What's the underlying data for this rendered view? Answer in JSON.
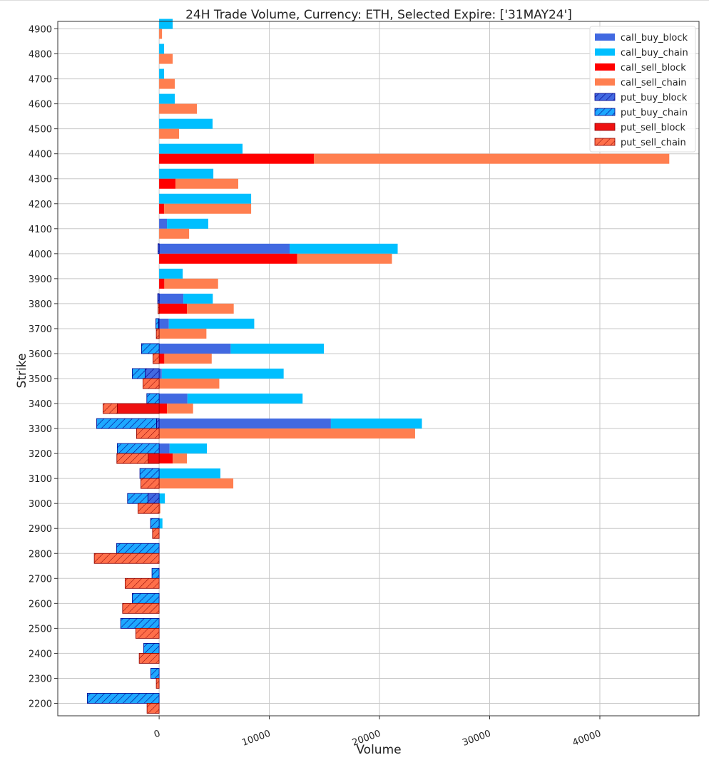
{
  "chart_data": {
    "type": "bar",
    "orientation": "horizontal",
    "stacked": true,
    "title": "24H Trade Volume, Currency: ETH, Selected Expire: ['31MAY24']",
    "xlabel": "Volume",
    "ylabel": "Strike",
    "xlim": [
      -9200,
      49000
    ],
    "ylim": [
      2150,
      4930
    ],
    "xticks": [
      0,
      10000,
      20000,
      30000,
      40000
    ],
    "grid": true,
    "legend_position": "top-right",
    "categories": [
      4900,
      4800,
      4700,
      4600,
      4500,
      4400,
      4300,
      4200,
      4100,
      4000,
      3900,
      3800,
      3700,
      3600,
      3500,
      3400,
      3300,
      3200,
      3100,
      3000,
      2900,
      2800,
      2700,
      2600,
      2500,
      2400,
      2300,
      2200
    ],
    "series": [
      {
        "name": "call_buy_block",
        "group": "buy",
        "color": "#4169E1",
        "hatch": false,
        "values": [
          0,
          0,
          0,
          0,
          0,
          0,
          0,
          0,
          710,
          11840,
          0,
          2200,
          880,
          6490,
          240,
          2570,
          15590,
          950,
          0,
          0,
          0,
          0,
          0,
          0,
          0,
          0,
          0,
          0
        ]
      },
      {
        "name": "call_buy_chain",
        "group": "buy",
        "color": "#00BFFF",
        "hatch": false,
        "values": [
          1230,
          450,
          450,
          1420,
          4850,
          7570,
          4920,
          8350,
          3750,
          9810,
          2140,
          2670,
          7750,
          8460,
          11060,
          10450,
          8260,
          3380,
          5560,
          520,
          300,
          0,
          0,
          0,
          0,
          0,
          0,
          0
        ]
      },
      {
        "name": "call_sell_block",
        "group": "sell",
        "color": "#FF0000",
        "hatch": false,
        "values": [
          0,
          0,
          0,
          0,
          0,
          14040,
          1490,
          450,
          0,
          12530,
          470,
          2520,
          0,
          470,
          0,
          710,
          0,
          1230,
          0,
          0,
          0,
          0,
          0,
          0,
          0,
          0,
          0,
          0
        ]
      },
      {
        "name": "call_sell_chain",
        "group": "sell",
        "color": "#FF7F50",
        "hatch": false,
        "values": [
          260,
          1230,
          1420,
          3430,
          1810,
          32260,
          5690,
          7900,
          2720,
          8600,
          4880,
          4250,
          4290,
          4300,
          5460,
          2370,
          23230,
          1290,
          6730,
          110,
          0,
          0,
          0,
          0,
          0,
          0,
          0,
          0
        ]
      },
      {
        "name": "put_buy_block",
        "group": "buy",
        "color": "#4169E1",
        "edge": "#00008B",
        "hatch": true,
        "values": [
          0,
          0,
          0,
          0,
          0,
          0,
          0,
          0,
          0,
          -100,
          0,
          -130,
          -50,
          0,
          -1270,
          0,
          -240,
          0,
          0,
          -1020,
          0,
          0,
          0,
          0,
          0,
          0,
          0,
          0
        ]
      },
      {
        "name": "put_buy_chain",
        "group": "buy",
        "color": "#1EA8FF",
        "edge": "#00008B",
        "hatch": true,
        "values": [
          0,
          0,
          0,
          0,
          0,
          0,
          0,
          0,
          0,
          0,
          0,
          0,
          -250,
          -1600,
          -1170,
          -1120,
          -5430,
          -3800,
          -1750,
          -1850,
          -780,
          -3860,
          -650,
          -2440,
          -3490,
          -1400,
          -760,
          -6520
        ]
      },
      {
        "name": "put_sell_block",
        "group": "sell",
        "color": "#EE1111",
        "edge": "#8B0000",
        "hatch": false,
        "values": [
          0,
          0,
          0,
          0,
          0,
          0,
          0,
          0,
          0,
          0,
          0,
          0,
          0,
          0,
          0,
          -3800,
          0,
          -990,
          0,
          0,
          0,
          0,
          0,
          0,
          0,
          0,
          0,
          0
        ]
      },
      {
        "name": "put_sell_chain",
        "group": "sell",
        "color": "#FF6F4A",
        "edge": "#8B0000",
        "hatch": true,
        "values": [
          0,
          0,
          0,
          0,
          0,
          0,
          0,
          0,
          0,
          0,
          0,
          -100,
          -260,
          -560,
          -1470,
          -1290,
          -2050,
          -2850,
          -1660,
          -1920,
          -600,
          -5890,
          -3090,
          -3320,
          -2120,
          -1810,
          -260,
          -1100
        ]
      }
    ]
  }
}
